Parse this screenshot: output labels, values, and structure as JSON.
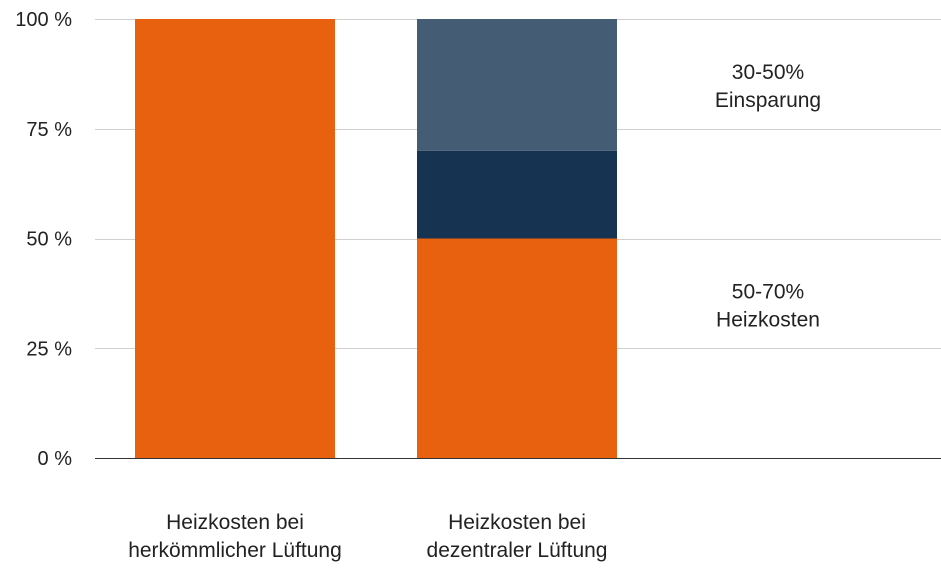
{
  "chart_data": {
    "type": "bar",
    "stacked": true,
    "categories": [
      [
        "Heizkosten bei",
        "herkömmlicher Lüftung"
      ],
      [
        "Heizkosten bei",
        "dezentraler Lüftung"
      ]
    ],
    "ylim": [
      0,
      100
    ],
    "yticks": [
      0,
      25,
      50,
      75,
      100
    ],
    "ytick_labels": [
      "0 %",
      "25 %",
      "50 %",
      "75 %",
      "100 %"
    ],
    "grid": true,
    "series": [
      {
        "values": [
          100,
          50
        ],
        "color": "#e8610f"
      },
      {
        "values": [
          0,
          20
        ],
        "color": "#163452"
      },
      {
        "values": [
          0,
          30
        ],
        "color": "#445c74"
      }
    ],
    "annotations": [
      {
        "lines": [
          "30-50%",
          "Einsparung"
        ],
        "y": 85
      },
      {
        "lines": [
          "50-70%",
          "Heizkosten"
        ],
        "y": 35
      }
    ]
  }
}
